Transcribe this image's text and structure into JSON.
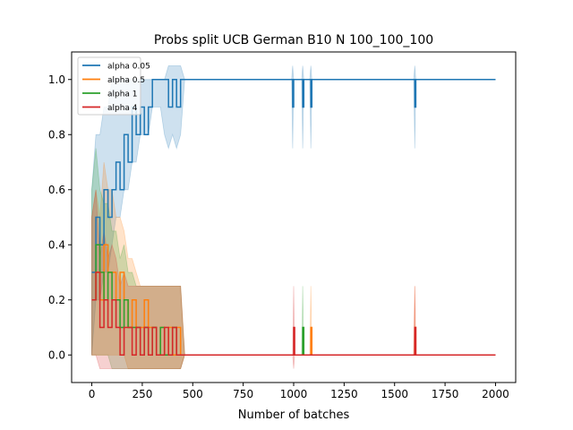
{
  "chart_data": {
    "type": "line",
    "title": "Probs split UCB German B10 N 100_100_100",
    "xlabel": "Number of batches",
    "ylabel": "",
    "xlim": [
      -100,
      2100
    ],
    "ylim": [
      -0.1,
      1.1
    ],
    "x_ticks": [
      0,
      250,
      500,
      750,
      1000,
      1250,
      1500,
      1750,
      2000
    ],
    "y_ticks": [
      0.0,
      0.2,
      0.4,
      0.6,
      0.8,
      1.0
    ],
    "x_tick_labels": [
      "0",
      "250",
      "500",
      "750",
      "1000",
      "1250",
      "1500",
      "1750",
      "2000"
    ],
    "y_tick_labels": [
      "0.0",
      "0.2",
      "0.4",
      "0.6",
      "0.8",
      "1.0"
    ],
    "grid": false,
    "legend_position": "top-left",
    "band_description": "light shaded vertical bands show min-max spread per batch",
    "series": [
      {
        "name": "alpha 0.05",
        "color": "#1f77b4",
        "x": [
          0,
          20,
          40,
          60,
          80,
          100,
          120,
          140,
          160,
          180,
          200,
          220,
          240,
          260,
          280,
          300,
          320,
          340,
          360,
          380,
          400,
          420,
          440,
          460,
          480,
          500,
          800,
          990,
          995,
          1000,
          1040,
          1045,
          1050,
          1080,
          1085,
          1090,
          1595,
          1600,
          1605,
          2000
        ],
        "y": [
          0.3,
          0.5,
          0.4,
          0.6,
          0.5,
          0.6,
          0.7,
          0.6,
          0.8,
          0.7,
          0.9,
          0.8,
          0.9,
          0.8,
          0.9,
          1.0,
          1.0,
          1.0,
          1.0,
          0.9,
          1.0,
          0.9,
          1.0,
          1.0,
          1.0,
          1.0,
          1.0,
          1.0,
          0.9,
          1.0,
          1.0,
          0.9,
          1.0,
          1.0,
          0.9,
          1.0,
          1.0,
          0.9,
          1.0,
          1.0
        ],
        "band_low": [
          0.0,
          0.2,
          0.2,
          0.3,
          0.3,
          0.4,
          0.5,
          0.5,
          0.6,
          0.6,
          0.7,
          0.7,
          0.8,
          0.8,
          0.8,
          0.9,
          0.9,
          0.9,
          0.8,
          0.75,
          0.8,
          0.75,
          0.8,
          1.0,
          1.0,
          1.0,
          1.0,
          1.0,
          0.75,
          1.0,
          1.0,
          0.75,
          1.0,
          1.0,
          0.75,
          1.0,
          1.0,
          0.75,
          1.0,
          1.0
        ],
        "band_high": [
          0.6,
          0.8,
          0.8,
          0.9,
          0.9,
          1.0,
          1.0,
          1.0,
          1.0,
          1.0,
          1.0,
          1.0,
          1.0,
          1.0,
          1.0,
          1.0,
          1.0,
          1.0,
          1.0,
          1.05,
          1.05,
          1.05,
          1.05,
          1.0,
          1.0,
          1.0,
          1.0,
          1.0,
          1.05,
          1.0,
          1.0,
          1.05,
          1.0,
          1.0,
          1.05,
          1.0,
          1.0,
          1.05,
          1.0,
          1.0
        ]
      },
      {
        "name": "alpha 0.5",
        "color": "#ff7f0e",
        "x": [
          0,
          20,
          40,
          60,
          80,
          100,
          120,
          140,
          160,
          180,
          200,
          220,
          240,
          260,
          280,
          300,
          320,
          340,
          360,
          380,
          400,
          420,
          440,
          460,
          480,
          500,
          800,
          1000,
          1040,
          1080,
          1085,
          1090,
          1595,
          1600,
          1605,
          2000
        ],
        "y": [
          0.2,
          0.3,
          0.2,
          0.4,
          0.3,
          0.3,
          0.2,
          0.3,
          0.2,
          0.1,
          0.2,
          0.1,
          0.1,
          0.2,
          0.1,
          0.1,
          0.0,
          0.1,
          0.0,
          0.1,
          0.0,
          0.1,
          0.0,
          0.0,
          0.0,
          0.0,
          0.0,
          0.0,
          0.0,
          0.0,
          0.1,
          0.0,
          0.0,
          0.1,
          0.0,
          0.0
        ],
        "band_low": [
          0.0,
          0.0,
          0.0,
          0.0,
          0.0,
          0.0,
          0.0,
          0.0,
          0.0,
          -0.05,
          -0.05,
          -0.05,
          -0.05,
          -0.05,
          -0.05,
          -0.05,
          -0.05,
          -0.05,
          -0.05,
          -0.05,
          -0.05,
          -0.05,
          -0.05,
          0.0,
          0.0,
          0.0,
          0.0,
          0.0,
          0.0,
          0.0,
          0.0,
          0.0,
          0.0,
          0.0,
          0.0,
          0.0
        ],
        "band_high": [
          0.5,
          0.6,
          0.5,
          0.7,
          0.6,
          0.6,
          0.5,
          0.5,
          0.45,
          0.35,
          0.35,
          0.3,
          0.25,
          0.25,
          0.25,
          0.25,
          0.25,
          0.25,
          0.25,
          0.25,
          0.25,
          0.25,
          0.25,
          0.0,
          0.0,
          0.0,
          0.0,
          0.0,
          0.0,
          0.0,
          0.25,
          0.0,
          0.0,
          0.25,
          0.0,
          0.0
        ]
      },
      {
        "name": "alpha 1",
        "color": "#2ca02c",
        "x": [
          0,
          20,
          40,
          60,
          80,
          100,
          120,
          140,
          160,
          180,
          200,
          220,
          240,
          260,
          280,
          300,
          320,
          340,
          360,
          380,
          400,
          420,
          440,
          460,
          500,
          800,
          1040,
          1045,
          1050,
          2000
        ],
        "y": [
          0.2,
          0.4,
          0.3,
          0.2,
          0.3,
          0.2,
          0.2,
          0.1,
          0.2,
          0.1,
          0.1,
          0.1,
          0.0,
          0.1,
          0.0,
          0.1,
          0.0,
          0.1,
          0.0,
          0.0,
          0.1,
          0.0,
          0.0,
          0.0,
          0.0,
          0.0,
          0.0,
          0.1,
          0.0,
          0.0
        ],
        "band_low": [
          0.0,
          0.0,
          0.0,
          0.0,
          0.0,
          -0.05,
          -0.05,
          -0.05,
          -0.05,
          -0.05,
          -0.05,
          -0.05,
          -0.05,
          -0.05,
          -0.05,
          -0.05,
          -0.05,
          -0.05,
          -0.05,
          -0.05,
          -0.05,
          -0.05,
          -0.05,
          0.0,
          0.0,
          0.0,
          0.0,
          0.0,
          0.0,
          0.0
        ],
        "band_high": [
          0.6,
          0.75,
          0.6,
          0.55,
          0.55,
          0.45,
          0.45,
          0.35,
          0.4,
          0.3,
          0.3,
          0.25,
          0.25,
          0.25,
          0.25,
          0.25,
          0.25,
          0.25,
          0.25,
          0.25,
          0.25,
          0.25,
          0.25,
          0.0,
          0.0,
          0.0,
          0.0,
          0.25,
          0.0,
          0.0
        ]
      },
      {
        "name": "alpha 4",
        "color": "#d62728",
        "x": [
          0,
          20,
          40,
          60,
          80,
          100,
          120,
          140,
          160,
          180,
          200,
          220,
          240,
          260,
          280,
          300,
          320,
          340,
          360,
          380,
          400,
          420,
          440,
          460,
          500,
          800,
          995,
          1000,
          1005,
          1595,
          1600,
          1605,
          2000
        ],
        "y": [
          0.2,
          0.3,
          0.1,
          0.2,
          0.1,
          0.2,
          0.1,
          0.0,
          0.1,
          0.1,
          0.0,
          0.1,
          0.0,
          0.1,
          0.0,
          0.1,
          0.0,
          0.0,
          0.1,
          0.0,
          0.1,
          0.0,
          0.0,
          0.0,
          0.0,
          0.0,
          0.0,
          0.1,
          0.0,
          0.0,
          0.1,
          0.0,
          0.0
        ],
        "band_low": [
          0.0,
          0.0,
          -0.05,
          -0.05,
          -0.05,
          -0.05,
          -0.05,
          -0.05,
          -0.05,
          -0.05,
          -0.05,
          -0.05,
          -0.05,
          -0.05,
          -0.05,
          -0.05,
          -0.05,
          -0.05,
          -0.05,
          -0.05,
          -0.05,
          -0.05,
          -0.05,
          0.0,
          0.0,
          0.0,
          0.0,
          -0.05,
          0.0,
          0.0,
          0.0,
          0.0,
          0.0
        ],
        "band_high": [
          0.5,
          0.6,
          0.35,
          0.45,
          0.35,
          0.4,
          0.35,
          0.25,
          0.3,
          0.25,
          0.25,
          0.25,
          0.25,
          0.25,
          0.25,
          0.25,
          0.25,
          0.25,
          0.25,
          0.25,
          0.25,
          0.25,
          0.25,
          0.0,
          0.0,
          0.0,
          0.0,
          0.25,
          0.0,
          0.0,
          0.25,
          0.0,
          0.0
        ]
      }
    ]
  }
}
